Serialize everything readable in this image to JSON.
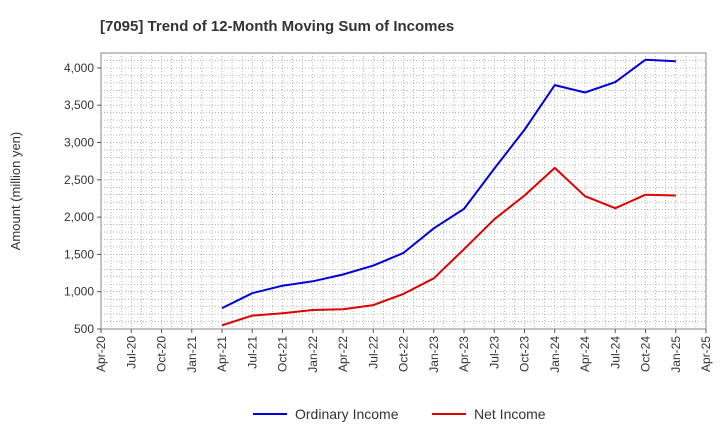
{
  "chart_data": {
    "type": "line",
    "title": "[7095]  Trend of 12-Month Moving Sum of Incomes",
    "xlabel": "",
    "ylabel": "Amount (million yen)",
    "ylim": [
      500,
      4200
    ],
    "yticks": [
      500,
      1000,
      1500,
      2000,
      2500,
      3000,
      3500,
      4000
    ],
    "ytick_labels": [
      "500",
      "1,000",
      "1,500",
      "2,000",
      "2,500",
      "3,000",
      "3,500",
      "4,000"
    ],
    "grid": true,
    "legend": "bottom",
    "categories": [
      "Apr-20",
      "Jul-20",
      "Oct-20",
      "Jan-21",
      "Apr-21",
      "Jul-21",
      "Oct-21",
      "Jan-22",
      "Apr-22",
      "Jul-22",
      "Oct-22",
      "Jan-23",
      "Apr-23",
      "Jul-23",
      "Oct-23",
      "Jan-24",
      "Apr-24",
      "Jul-24",
      "Oct-24",
      "Jan-25",
      "Apr-25"
    ],
    "series": [
      {
        "name": "Ordinary Income",
        "color": "#0000dd",
        "values": [
          null,
          null,
          null,
          null,
          780,
          980,
          1080,
          1140,
          1230,
          1350,
          1520,
          1850,
          2110,
          2650,
          3170,
          3770,
          3670,
          3810,
          4110,
          4090,
          null
        ]
      },
      {
        "name": "Net Income",
        "color": "#dd0000",
        "values": [
          null,
          null,
          null,
          null,
          550,
          680,
          710,
          755,
          765,
          820,
          970,
          1180,
          1570,
          1970,
          2290,
          2660,
          2280,
          2120,
          2300,
          2290,
          null
        ]
      }
    ]
  }
}
